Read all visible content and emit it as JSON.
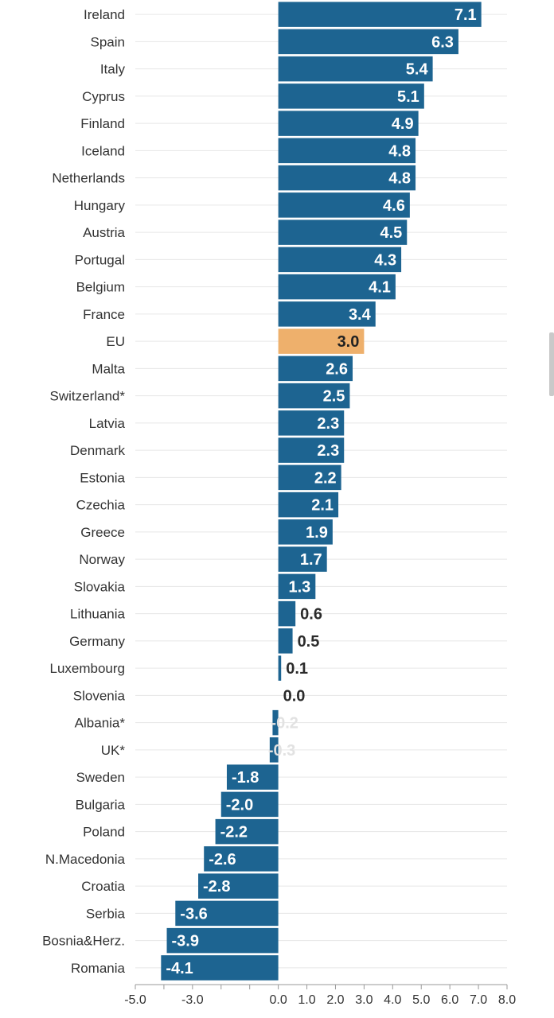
{
  "chart_data": {
    "type": "bar",
    "orientation": "horizontal",
    "categories": [
      "Ireland",
      "Spain",
      "Italy",
      "Cyprus",
      "Finland",
      "Iceland",
      "Netherlands",
      "Hungary",
      "Austria",
      "Portugal",
      "Belgium",
      "France",
      "EU",
      "Malta",
      "Switzerland*",
      "Latvia",
      "Denmark",
      "Estonia",
      "Czechia",
      "Greece",
      "Norway",
      "Slovakia",
      "Lithuania",
      "Germany",
      "Luxembourg",
      "Slovenia",
      "Albania*",
      "UK*",
      "Sweden",
      "Bulgaria",
      "Poland",
      "N.Macedonia",
      "Croatia",
      "Serbia",
      "Bosnia&Herz.",
      "Romania"
    ],
    "values": [
      7.1,
      6.3,
      5.4,
      5.1,
      4.9,
      4.8,
      4.8,
      4.6,
      4.5,
      4.3,
      4.1,
      3.4,
      3.0,
      2.6,
      2.5,
      2.3,
      2.3,
      2.2,
      2.1,
      1.9,
      1.7,
      1.3,
      0.6,
      0.5,
      0.1,
      0.0,
      -0.2,
      -0.3,
      -1.8,
      -2.0,
      -2.2,
      -2.6,
      -2.8,
      -3.6,
      -3.9,
      -4.1
    ],
    "value_labels": [
      "7.1",
      "6.3",
      "5.4",
      "5.1",
      "4.9",
      "4.8",
      "4.8",
      "4.6",
      "4.5",
      "4.3",
      "4.1",
      "3.4",
      "3.0",
      "2.6",
      "2.5",
      "2.3",
      "2.3",
      "2.2",
      "2.1",
      "1.9",
      "1.7",
      "1.3",
      "0.6",
      "0.5",
      "0.1",
      "0.0",
      "-0.2",
      "-0.3",
      "-1.8",
      "-2.0",
      "-2.2",
      "-2.6",
      "-2.8",
      "-3.6",
      "-3.9",
      "-4.1"
    ],
    "highlight": "EU",
    "xlim": [
      -5.0,
      8.0
    ],
    "xticks": [
      -5.0,
      -3.0,
      0.0,
      1.0,
      2.0,
      3.0,
      4.0,
      5.0,
      6.0,
      7.0,
      8.0
    ],
    "xtick_labels": [
      "-5.0",
      "-3.0",
      "0.0",
      "1.0",
      "2.0",
      "3.0",
      "4.0",
      "5.0",
      "6.0",
      "7.0",
      "8.0"
    ],
    "minor_xticks": [
      -4.0,
      -2.0,
      -1.0
    ],
    "title": "",
    "xlabel": "",
    "ylabel": "",
    "grid": true,
    "colors": {
      "bar": "#1d6491",
      "highlight": "#eeb06c",
      "label_inside": "#ffffff",
      "label_outside": "#2b2b2b",
      "category_text": "#333333",
      "grid": "#e6e6e6",
      "axis": "#999999"
    }
  }
}
